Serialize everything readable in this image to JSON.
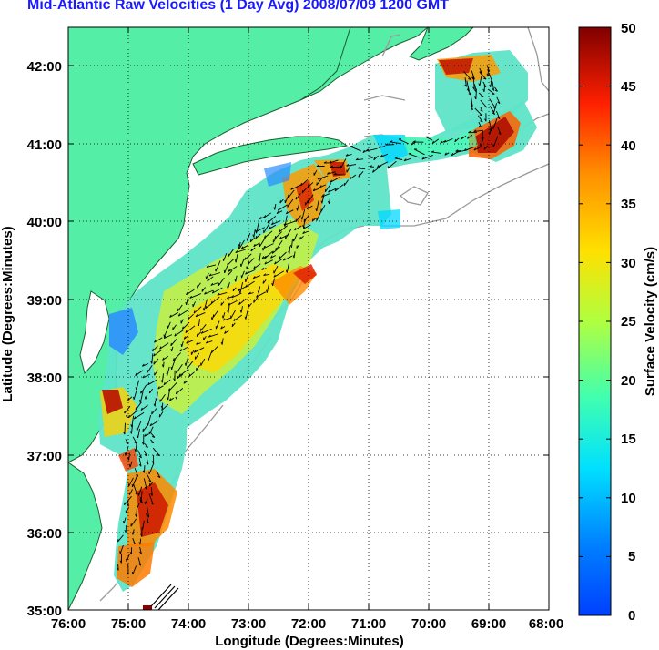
{
  "title": "Mid-Atlantic Raw Velocities (1 Day Avg) 2008/07/09 1200 GMT",
  "map": {
    "xlabel": "Longitude (Degrees:Minutes)",
    "ylabel": "Latitude (Degrees:Minutes)",
    "x_ticks": [
      "76:00",
      "75:00",
      "74:00",
      "73:00",
      "72:00",
      "71:00",
      "70:00",
      "69:00",
      "68:00"
    ],
    "y_ticks": [
      "42:00",
      "41:00",
      "40:00",
      "39:00",
      "38:00",
      "37:00",
      "36:00",
      "35:00"
    ],
    "xlim": [
      -76,
      -68
    ],
    "ylim": [
      35,
      42.5
    ],
    "grid": "dotted",
    "land_color": "#55eea6",
    "coast_color": "#1b5e2f",
    "bathymetry_color": "#9a9a9a"
  },
  "colorbar": {
    "label": "Surface Velocity (cm/s)",
    "ticks": [
      "50",
      "45",
      "40",
      "35",
      "30",
      "25",
      "20",
      "15",
      "10",
      "5",
      "0"
    ],
    "range": [
      0,
      50
    ],
    "colormap": "jet"
  }
}
